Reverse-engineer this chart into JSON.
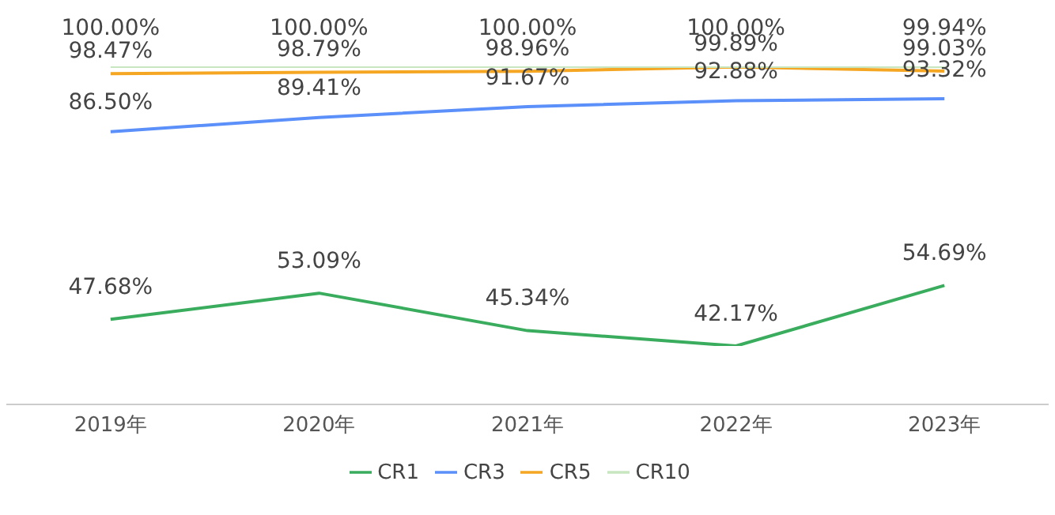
{
  "chart_data": {
    "type": "line",
    "categories": [
      "2019年",
      "2020年",
      "2021年",
      "2022年",
      "2023年"
    ],
    "series": [
      {
        "name": "CR1",
        "color": "#3aac5d",
        "values": [
          47.68,
          53.09,
          45.34,
          42.17,
          54.69
        ],
        "value_labels": [
          "47.68%",
          "53.09%",
          "45.34%",
          "42.17%",
          "54.69%"
        ]
      },
      {
        "name": "CR3",
        "color": "#5b8ff9",
        "values": [
          86.5,
          89.41,
          91.67,
          92.88,
          93.32
        ],
        "value_labels": [
          "86.50%",
          "89.41%",
          "91.67%",
          "92.88%",
          "93.32%"
        ]
      },
      {
        "name": "CR5",
        "color": "#f5a623",
        "values": [
          98.47,
          98.79,
          98.96,
          99.89,
          99.03
        ],
        "value_labels": [
          "98.47%",
          "98.79%",
          "98.96%",
          "99.89%",
          "99.03%"
        ]
      },
      {
        "name": "CR10",
        "color": "#c8e6c0",
        "values": [
          100,
          100,
          100,
          100,
          99.94
        ],
        "value_labels": [
          "100.00%",
          "100.00%",
          "100.00%",
          "100.00%",
          "99.94%"
        ]
      }
    ],
    "tick_labels": "x",
    "grid": false,
    "legend": "bottom",
    "marker": "none",
    "line_style": "solid"
  }
}
